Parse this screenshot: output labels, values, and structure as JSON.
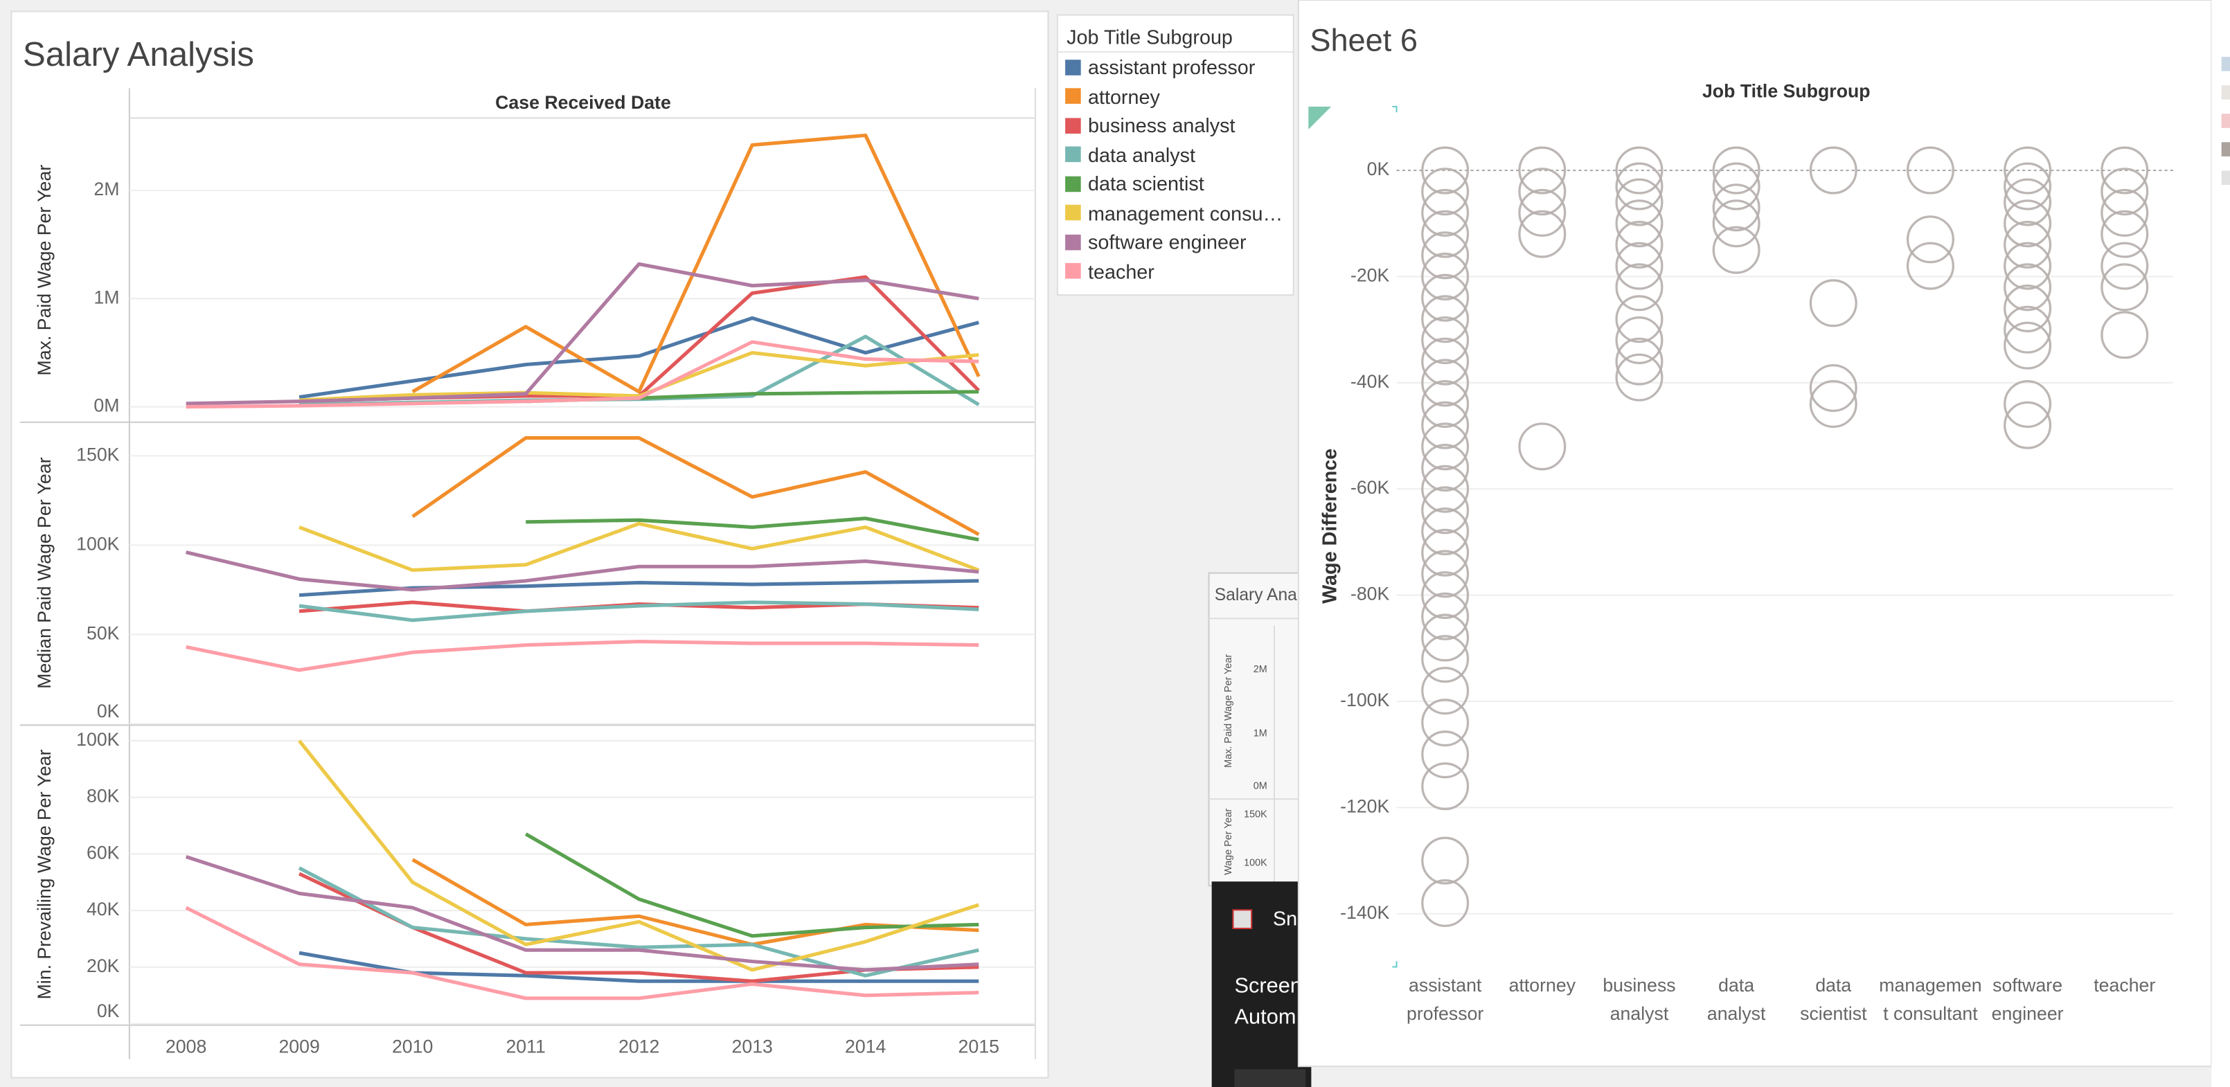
{
  "dashboard": {
    "title": "Salary Analysis"
  },
  "legend": {
    "title": "Job Title Subgroup"
  },
  "chart_data": [
    {
      "type": "line",
      "x_title": "Case Received Date",
      "x": [
        2008,
        2009,
        2010,
        2011,
        2012,
        2013,
        2014,
        2015
      ],
      "xlim": [
        2007.5,
        2015.5
      ],
      "y_label": "Max. Paid Wage Per Year",
      "ylim": [
        -130000,
        2670000
      ],
      "yticks": [
        {
          "value": 0,
          "label": "0M"
        },
        {
          "value": 1000000,
          "label": "1M"
        },
        {
          "value": 2000000,
          "label": "2M"
        }
      ],
      "grid": true,
      "series": [
        {
          "name": "assistant professor",
          "color": "#4e79a7",
          "values": [
            null,
            90000,
            240000,
            390000,
            470000,
            820000,
            500000,
            780000
          ]
        },
        {
          "name": "attorney",
          "color": "#f28e2b",
          "values": [
            null,
            null,
            140000,
            740000,
            140000,
            2420000,
            2510000,
            280000
          ]
        },
        {
          "name": "business analyst",
          "color": "#e15759",
          "values": [
            null,
            50000,
            80000,
            100000,
            100000,
            1050000,
            1200000,
            150000
          ]
        },
        {
          "name": "data analyst",
          "color": "#76b7b2",
          "values": [
            null,
            20000,
            40000,
            60000,
            70000,
            100000,
            650000,
            20000
          ]
        },
        {
          "name": "data scientist",
          "color": "#59a14f",
          "values": [
            null,
            null,
            null,
            50000,
            80000,
            120000,
            130000,
            140000
          ]
        },
        {
          "name": "management consultant",
          "color": "#edc948",
          "values": [
            null,
            60000,
            110000,
            130000,
            100000,
            500000,
            380000,
            480000
          ]
        },
        {
          "name": "software engineer",
          "color": "#b07aa1",
          "values": [
            30000,
            50000,
            80000,
            120000,
            1320000,
            1120000,
            1170000,
            1000000
          ]
        },
        {
          "name": "teacher",
          "color": "#ff9da7",
          "values": [
            0,
            10000,
            30000,
            50000,
            80000,
            600000,
            440000,
            420000
          ]
        }
      ]
    },
    {
      "type": "line",
      "y_label": "Median Paid Wage Per Year",
      "ylim": [
        0,
        168000
      ],
      "yticks": [
        {
          "value": 0,
          "label": "0K"
        },
        {
          "value": 50000,
          "label": "50K"
        },
        {
          "value": 100000,
          "label": "100K"
        },
        {
          "value": 150000,
          "label": "150K"
        }
      ],
      "grid": true,
      "series": [
        {
          "values": [
            null,
            72000,
            76000,
            77000,
            79000,
            78000,
            79000,
            80000
          ]
        },
        {
          "values": [
            null,
            null,
            116000,
            160000,
            160000,
            127000,
            141000,
            106000
          ]
        },
        {
          "values": [
            null,
            63000,
            68000,
            63000,
            67000,
            65000,
            67000,
            65000
          ]
        },
        {
          "values": [
            null,
            66000,
            58000,
            63000,
            66000,
            68000,
            67000,
            64000
          ]
        },
        {
          "values": [
            null,
            null,
            null,
            113000,
            114000,
            110000,
            115000,
            103000
          ]
        },
        {
          "values": [
            null,
            110000,
            86000,
            89000,
            112000,
            98000,
            110000,
            86000
          ]
        },
        {
          "values": [
            96000,
            81000,
            75000,
            80000,
            88000,
            88000,
            91000,
            85000
          ]
        },
        {
          "values": [
            43000,
            30000,
            40000,
            44000,
            46000,
            45000,
            45000,
            44000
          ]
        }
      ]
    },
    {
      "type": "line",
      "y_label": "Min. Prevailing Wage Per Year",
      "ylim": [
        0,
        105000
      ],
      "yticks": [
        {
          "value": 0,
          "label": "0K"
        },
        {
          "value": 20000,
          "label": "20K"
        },
        {
          "value": 40000,
          "label": "40K"
        },
        {
          "value": 60000,
          "label": "60K"
        },
        {
          "value": 80000,
          "label": "80K"
        },
        {
          "value": 100000,
          "label": "100K"
        }
      ],
      "grid": true,
      "series": [
        {
          "values": [
            null,
            25000,
            18000,
            17000,
            15000,
            15000,
            15000,
            15000
          ]
        },
        {
          "values": [
            null,
            null,
            58000,
            35000,
            38000,
            28000,
            35000,
            33000
          ]
        },
        {
          "values": [
            null,
            53000,
            34000,
            18000,
            18000,
            15000,
            19000,
            20000
          ]
        },
        {
          "values": [
            null,
            55000,
            34000,
            30000,
            27000,
            28000,
            17000,
            26000
          ]
        },
        {
          "values": [
            null,
            null,
            null,
            67000,
            44000,
            31000,
            34000,
            35000
          ]
        },
        {
          "values": [
            null,
            100000,
            50000,
            28000,
            36000,
            19000,
            29000,
            42000
          ]
        },
        {
          "values": [
            59000,
            46000,
            41000,
            26000,
            26000,
            22000,
            19000,
            21000
          ]
        },
        {
          "values": [
            41000,
            21000,
            18000,
            9000,
            9000,
            14000,
            10000,
            11000
          ]
        }
      ]
    },
    {
      "type": "scatter",
      "title": "Sheet 6",
      "x_title": "Job Title Subgroup",
      "y_label": "Wage Difference",
      "color": "#b5aeac",
      "categories": [
        "assistant professor",
        "attorney",
        "business analyst",
        "data analyst",
        "data scientist",
        "management consultant",
        "software engineer",
        "teacher"
      ],
      "ylim": [
        -150000,
        12000
      ],
      "yticks": [
        {
          "value": 0,
          "label": "0K"
        },
        {
          "value": -20000,
          "label": "-20K"
        },
        {
          "value": -40000,
          "label": "-40K"
        },
        {
          "value": -60000,
          "label": "-60K"
        },
        {
          "value": -80000,
          "label": "-80K"
        },
        {
          "value": -100000,
          "label": "-100K"
        },
        {
          "value": -120000,
          "label": "-120K"
        },
        {
          "value": -140000,
          "label": "-140K"
        }
      ],
      "values": [
        [
          0,
          -4000,
          -8000,
          -12000,
          -16000,
          -20000,
          -24000,
          -28000,
          -32000,
          -36000,
          -40000,
          -44000,
          -48000,
          -52000,
          -56000,
          -60000,
          -64000,
          -68000,
          -72000,
          -76000,
          -80000,
          -84000,
          -88000,
          -92000,
          -98000,
          -104000,
          -110000,
          -116000,
          -130000,
          -138000
        ],
        [
          0,
          -4000,
          -8000,
          -12000,
          -52000
        ],
        [
          0,
          -3000,
          -6000,
          -10000,
          -14000,
          -18000,
          -22000,
          -28000,
          -32000,
          -36000,
          -39000
        ],
        [
          0,
          -3000,
          -7000,
          -10000,
          -15000
        ],
        [
          0,
          -25000,
          -41000,
          -44000
        ],
        [
          0,
          -13000,
          -18000
        ],
        [
          0,
          -3000,
          -6000,
          -10000,
          -14000,
          -18000,
          -22000,
          -26000,
          -30000,
          -33000,
          -44000,
          -48000
        ],
        [
          0,
          -4000,
          -8000,
          -12000,
          -18000,
          -22000,
          -31000
        ]
      ]
    }
  ],
  "thumbnail": {
    "title": "Salary Ana",
    "labels": [
      "Max. Paid Wage Per Year",
      "2M",
      "1M",
      "0M",
      "150K",
      "100K",
      "Wage Per Year"
    ]
  },
  "notification": {
    "app": "Sni",
    "lines": [
      "Screen",
      "Autom"
    ]
  }
}
